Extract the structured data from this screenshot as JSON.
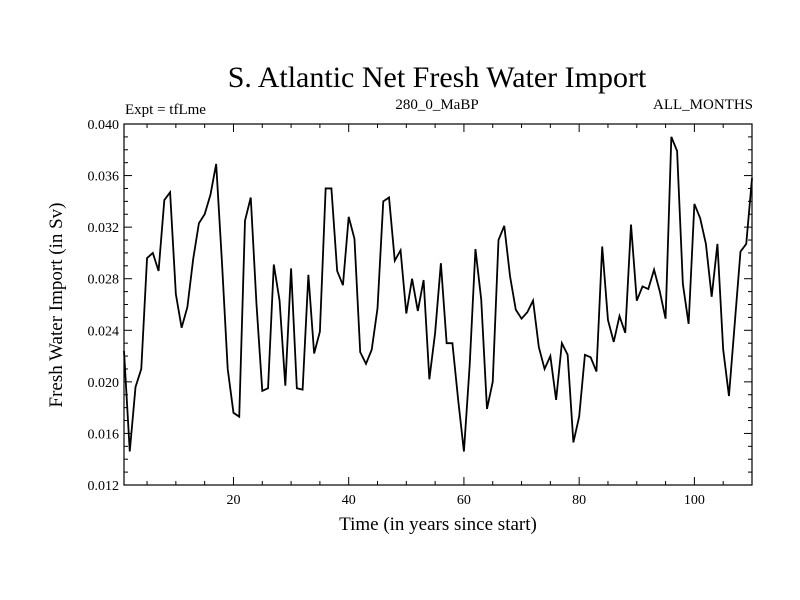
{
  "chart_data": {
    "type": "line",
    "title": "S. Atlantic Net Fresh Water Import",
    "subtitle_left": "Expt = tfLme",
    "subtitle_center": "280_0_MaBP",
    "subtitle_right": "ALL_MONTHS",
    "xlabel": "Time (in years since start)",
    "ylabel": "Fresh Water Import (in Sv)",
    "xlim": [
      1,
      110
    ],
    "ylim": [
      0.012,
      0.04
    ],
    "x_ticks": [
      20,
      40,
      60,
      80,
      100
    ],
    "x_tick_labels": [
      "20",
      "40",
      "60",
      "80",
      "100"
    ],
    "y_ticks": [
      0.012,
      0.016,
      0.02,
      0.024,
      0.028,
      0.032,
      0.036,
      0.04
    ],
    "y_tick_labels": [
      "0.012",
      "0.016",
      "0.020",
      "0.024",
      "0.028",
      "0.032",
      "0.036",
      "0.040"
    ],
    "series": [
      {
        "name": "Fresh Water Import",
        "color": "#000000",
        "x": [
          1,
          2,
          3,
          4,
          5,
          6,
          7,
          8,
          9,
          10,
          11,
          12,
          13,
          14,
          15,
          16,
          17,
          18,
          19,
          20,
          21,
          22,
          23,
          24,
          25,
          26,
          27,
          28,
          29,
          30,
          31,
          32,
          33,
          34,
          35,
          36,
          37,
          38,
          39,
          40,
          41,
          42,
          43,
          44,
          45,
          46,
          47,
          48,
          49,
          50,
          51,
          52,
          53,
          54,
          55,
          56,
          57,
          58,
          59,
          60,
          61,
          62,
          63,
          64,
          65,
          66,
          67,
          68,
          69,
          70,
          71,
          72,
          73,
          74,
          75,
          76,
          77,
          78,
          79,
          80,
          81,
          82,
          83,
          84,
          85,
          86,
          87,
          88,
          89,
          90,
          91,
          92,
          93,
          94,
          95,
          96,
          97,
          98,
          99,
          100,
          101,
          102,
          103,
          104,
          105,
          106,
          107,
          108,
          109,
          110
        ],
        "values": [
          0.0224,
          0.0146,
          0.0196,
          0.021,
          0.0296,
          0.03,
          0.0286,
          0.0341,
          0.0347,
          0.0268,
          0.0242,
          0.0258,
          0.0295,
          0.0323,
          0.033,
          0.0345,
          0.0369,
          0.0293,
          0.021,
          0.0176,
          0.0173,
          0.0325,
          0.0343,
          0.026,
          0.0193,
          0.0195,
          0.0291,
          0.0263,
          0.0197,
          0.0288,
          0.0195,
          0.0194,
          0.0283,
          0.0222,
          0.0239,
          0.035,
          0.035,
          0.0286,
          0.0275,
          0.0328,
          0.0311,
          0.0223,
          0.0214,
          0.0225,
          0.0257,
          0.034,
          0.0343,
          0.0294,
          0.0302,
          0.0253,
          0.028,
          0.0255,
          0.0279,
          0.0202,
          0.0238,
          0.0292,
          0.023,
          0.023,
          0.0186,
          0.0146,
          0.0213,
          0.0303,
          0.0264,
          0.0179,
          0.02,
          0.031,
          0.0321,
          0.0282,
          0.0256,
          0.0249,
          0.0254,
          0.0263,
          0.0227,
          0.021,
          0.022,
          0.0186,
          0.023,
          0.0221,
          0.0153,
          0.0173,
          0.0221,
          0.0219,
          0.0208,
          0.0305,
          0.0248,
          0.0231,
          0.0251,
          0.0238,
          0.0322,
          0.0263,
          0.0274,
          0.0272,
          0.0287,
          0.027,
          0.0249,
          0.039,
          0.0379,
          0.0276,
          0.0245,
          0.0338,
          0.0327,
          0.0307,
          0.0266,
          0.0307,
          0.0225,
          0.0189,
          0.0245,
          0.0301,
          0.0307,
          0.0358
        ]
      }
    ]
  }
}
